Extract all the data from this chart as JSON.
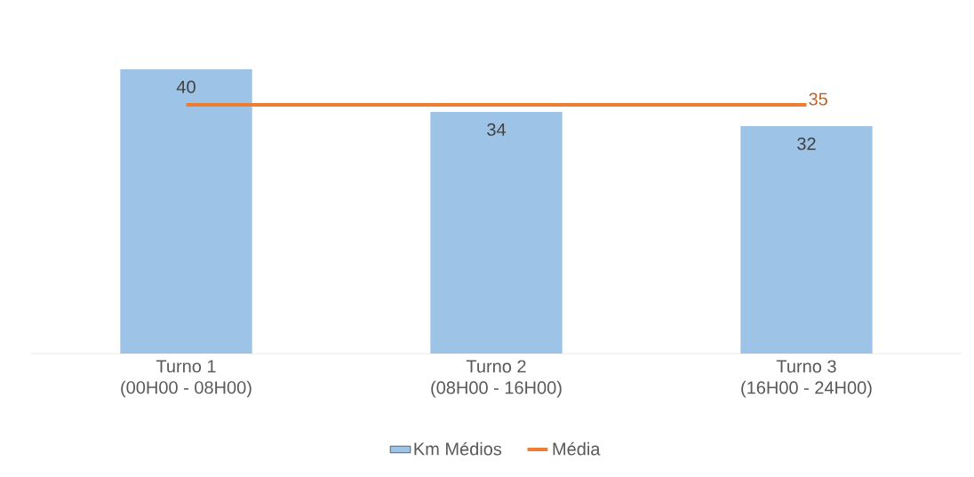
{
  "chart_data": {
    "type": "bar",
    "categories": [
      "Turno 1\n(00H00 - 08H00)",
      "Turno 2\n(08H00 - 16H00)",
      "Turno 3\n(16H00 - 24H00)"
    ],
    "series": [
      {
        "name": "Km Médios",
        "color": "#9dc3e6",
        "values": [
          40,
          34,
          32
        ],
        "value_labels": [
          "40",
          "34",
          "32"
        ]
      },
      {
        "name": "Média",
        "type": "line",
        "color": "#ed7d31",
        "values": [
          35,
          35,
          35
        ],
        "value_labels": [
          null,
          null,
          "35"
        ]
      }
    ],
    "legend": "bottom",
    "tick_labels": "x"
  }
}
